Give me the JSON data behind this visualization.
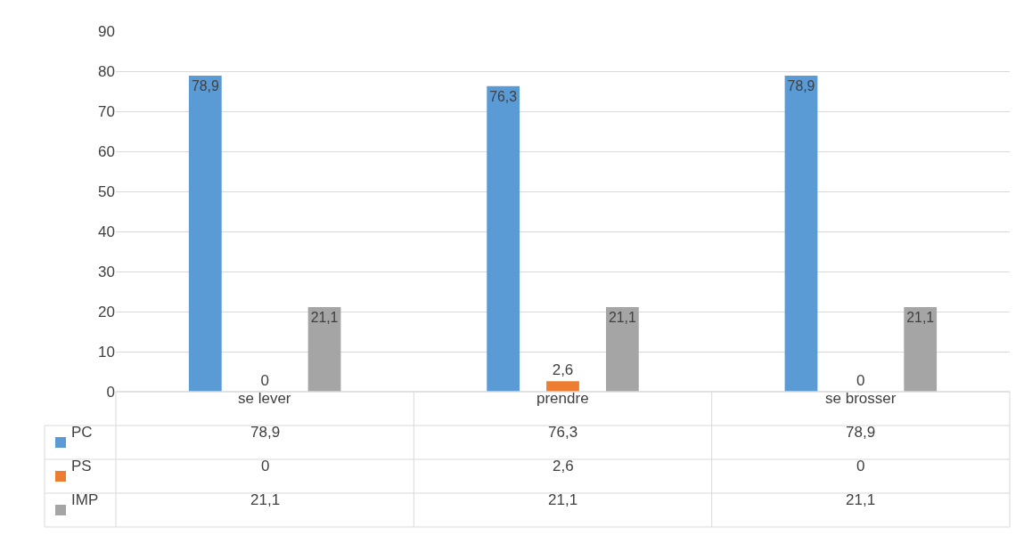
{
  "chart_data": {
    "type": "bar",
    "categories": [
      "se lever",
      "prendre",
      "se brosser"
    ],
    "series": [
      {
        "name": "PC",
        "color": "#5b9bd5",
        "values": [
          78.9,
          76.3,
          78.9
        ],
        "value_labels": [
          "78,9",
          "76,3",
          "78,9"
        ]
      },
      {
        "name": "PS",
        "color": "#ed7d31",
        "values": [
          0,
          2.6,
          0
        ],
        "value_labels": [
          "0",
          "2,6",
          "0"
        ]
      },
      {
        "name": "IMP",
        "color": "#a5a5a5",
        "values": [
          21.1,
          21.1,
          21.1
        ],
        "value_labels": [
          "21,1",
          "21,1",
          "21,1"
        ]
      }
    ],
    "ylim": [
      0,
      90
    ],
    "yticks": [
      0,
      10,
      20,
      30,
      40,
      50,
      60,
      70,
      80,
      90
    ],
    "grid": "y",
    "legend": "bottom"
  }
}
